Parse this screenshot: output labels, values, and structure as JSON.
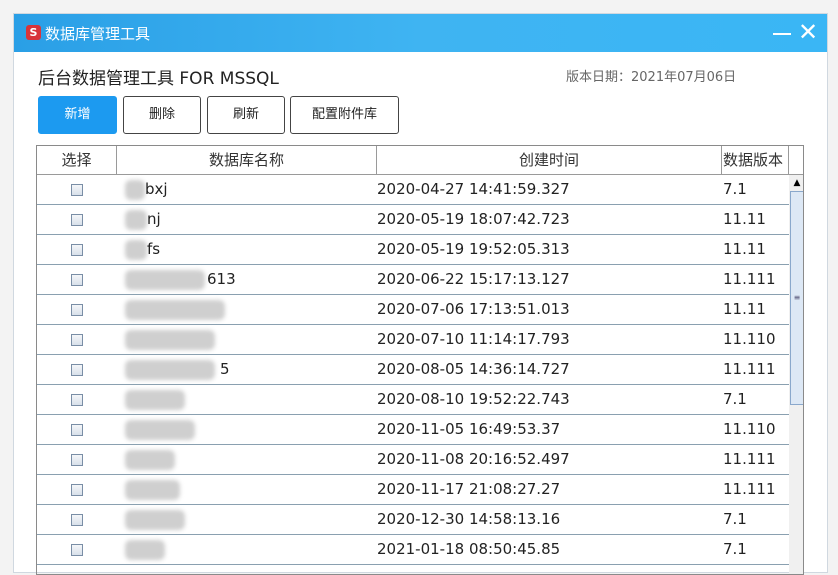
{
  "window": {
    "title": "数据库管理工具",
    "logo": "S",
    "minimize": "minimize-icon",
    "close": "✕"
  },
  "header": {
    "title": "后台数据管理工具 FOR MSSQL",
    "version_date": "版本日期：2021年07月06日"
  },
  "toolbar": {
    "add": "新增",
    "delete": "删除",
    "refresh": "刷新",
    "config": "配置附件库"
  },
  "table": {
    "columns": [
      "选择",
      "数据库名称",
      "创建时间",
      "数据版本"
    ],
    "rows": [
      {
        "name": "bxj",
        "created": "2020-04-27 14:41:59.327",
        "version": "7.1"
      },
      {
        "name": "nj",
        "created": "2020-05-19 18:07:42.723",
        "version": "11.11"
      },
      {
        "name": "fs",
        "created": "2020-05-19 19:52:05.313",
        "version": "11.11"
      },
      {
        "name": "613",
        "created": "2020-06-22 15:17:13.127",
        "version": "11.111"
      },
      {
        "name": "",
        "created": "2020-07-06 17:13:51.013",
        "version": "11.11"
      },
      {
        "name": "",
        "created": "2020-07-10 11:14:17.793",
        "version": "11.110"
      },
      {
        "name": "5",
        "created": "2020-08-05 14:36:14.727",
        "version": "11.111"
      },
      {
        "name": "",
        "created": "2020-08-10 19:52:22.743",
        "version": "7.1"
      },
      {
        "name": "",
        "created": "2020-11-05 16:49:53.37",
        "version": "11.110"
      },
      {
        "name": "",
        "created": "2020-11-08 20:16:52.497",
        "version": "11.111"
      },
      {
        "name": "",
        "created": "2020-11-17 21:08:27.27",
        "version": "11.111"
      },
      {
        "name": "",
        "created": "2020-12-30 14:58:13.16",
        "version": "7.1"
      },
      {
        "name": "",
        "created": "2021-01-18 08:50:45.85",
        "version": "7.1"
      }
    ]
  }
}
